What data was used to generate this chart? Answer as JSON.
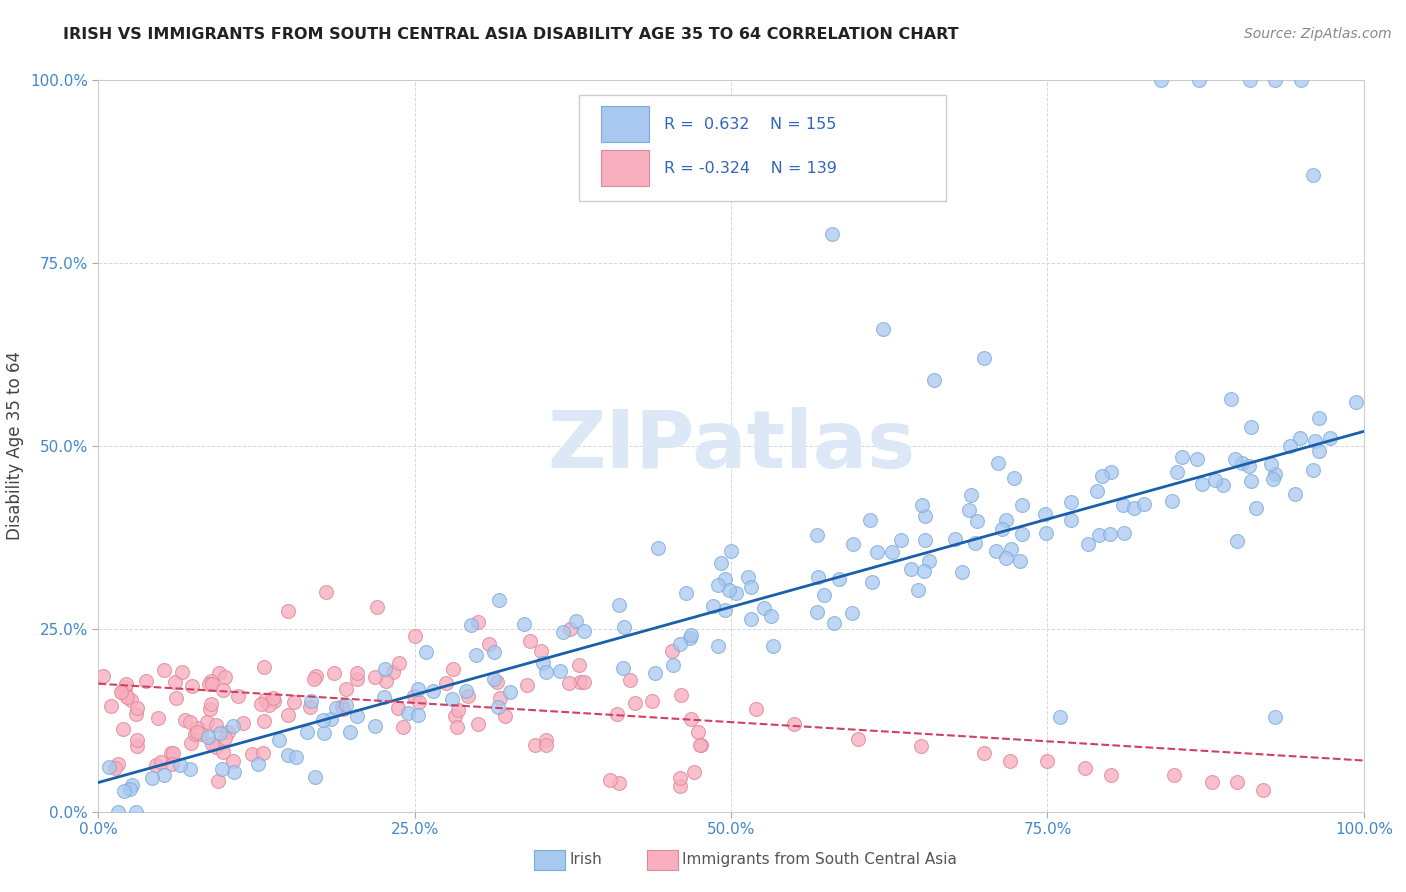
{
  "title": "IRISH VS IMMIGRANTS FROM SOUTH CENTRAL ASIA DISABILITY AGE 35 TO 64 CORRELATION CHART",
  "source": "Source: ZipAtlas.com",
  "ylabel": "Disability Age 35 to 64",
  "legend_label1": "Irish",
  "legend_label2": "Immigrants from South Central Asia",
  "r1": 0.632,
  "n1": 155,
  "r2": -0.324,
  "n2": 139,
  "color_irish": "#a8c8f0",
  "color_irish_edge": "#7aaad8",
  "color_immig": "#f8b0c0",
  "color_immig_edge": "#e08898",
  "color_irish_line": "#1a5faa",
  "color_immig_line": "#d04060",
  "watermark_color": "#dce8f5",
  "background_color": "#ffffff",
  "grid_color": "#d8d8d8",
  "tick_color": "#4488cc",
  "title_color": "#222222",
  "source_color": "#888888",
  "ylabel_color": "#444444",
  "legend_text_color": "#3366bb",
  "bottom_legend_text_color": "#555555"
}
